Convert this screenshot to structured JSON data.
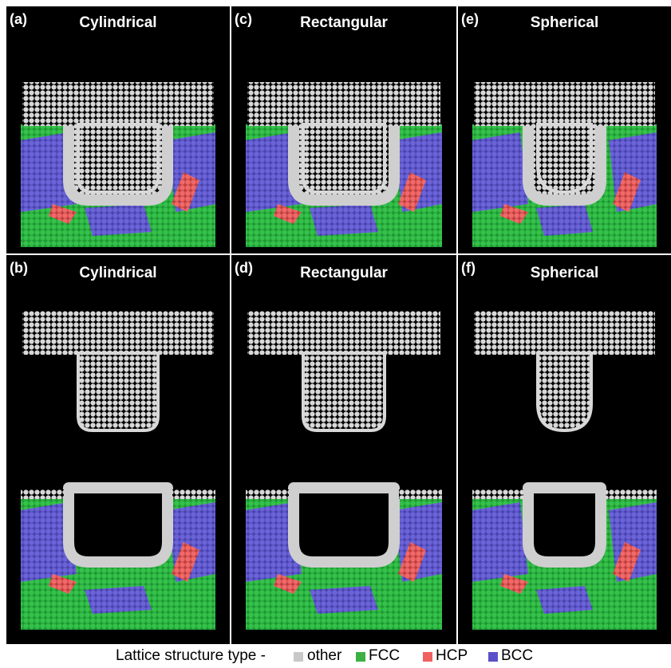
{
  "panels": [
    [
      {
        "label": "(a)",
        "title": "Cylindrical"
      },
      {
        "label": "(c)",
        "title": "Rectangular"
      },
      {
        "label": "(e)",
        "title": "Spherical"
      }
    ],
    [
      {
        "label": "(b)",
        "title": "Cylindrical"
      },
      {
        "label": "(d)",
        "title": "Rectangular"
      },
      {
        "label": "(f)",
        "title": "Spherical"
      }
    ]
  ],
  "legend": {
    "title": "Lattice structure type -",
    "items": [
      "other",
      "FCC",
      "HCP",
      "BCC"
    ]
  }
}
